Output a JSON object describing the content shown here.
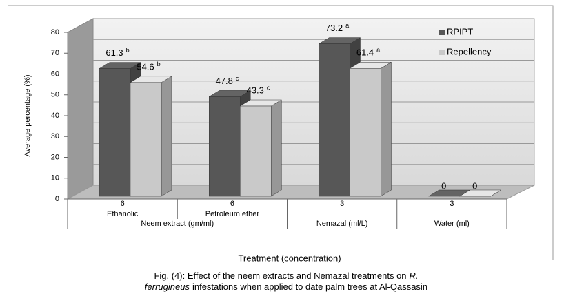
{
  "chart_data": {
    "type": "bar3d",
    "y_axis_label": "Average percentage (%)",
    "x_axis_label": "Treatment  (concentration)",
    "categories": [
      "6",
      "6",
      "3",
      "3"
    ],
    "subcategories": [
      "Ethanolic",
      "Petroleum ether",
      null,
      null
    ],
    "groups": [
      {
        "label": "Neem extract (gm/ml)",
        "span": [
          0,
          1
        ]
      },
      {
        "label": "Nemazal (ml/L)",
        "span": [
          2,
          2
        ]
      },
      {
        "label": "Water (ml)",
        "span": [
          3,
          3
        ]
      }
    ],
    "series": [
      {
        "name": "RPIPT",
        "color": "#575757",
        "values": [
          61.3,
          47.8,
          73.2,
          0
        ],
        "letters": [
          "b",
          "c",
          "a",
          null
        ]
      },
      {
        "name": "Repellency",
        "color": "#c9c9c9",
        "values": [
          54.6,
          43.3,
          61.4,
          0
        ],
        "letters": [
          "b",
          "c",
          "a",
          null
        ]
      }
    ],
    "ylim": [
      0,
      80
    ],
    "yticks": [
      0,
      10,
      20,
      30,
      40,
      50,
      60,
      70,
      80
    ],
    "grid": true,
    "legend": "top-right"
  },
  "caption": {
    "line1": "Fig. (4): Effect of the neem extracts and Nemazal treatments on",
    "line1_italic": "R.",
    "line2_italic": "ferrugineus",
    "line2": "infestations when applied to date palm trees at Al-Qassasin"
  }
}
